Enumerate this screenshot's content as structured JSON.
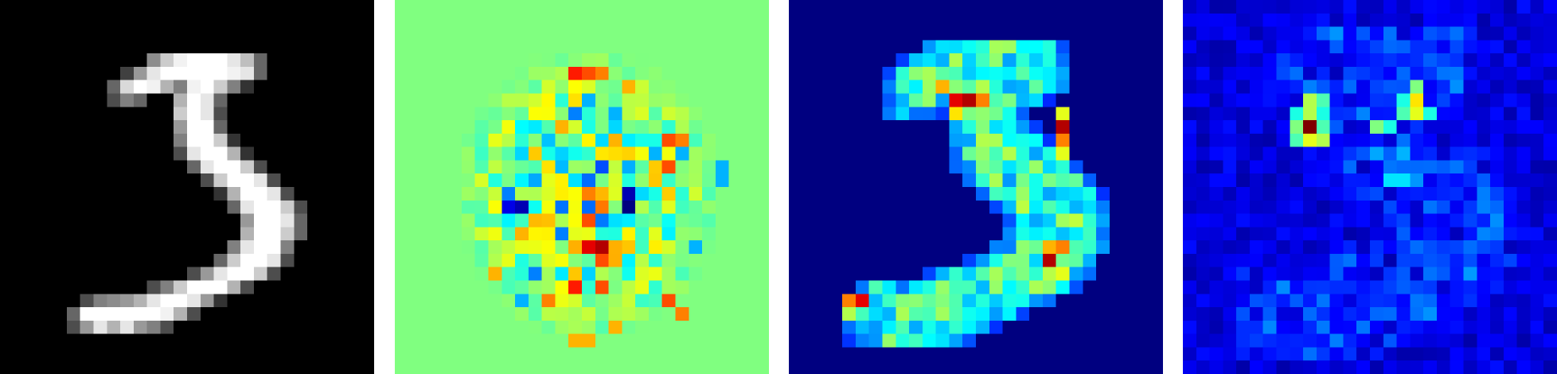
{
  "figure": {
    "description_visible_text": "",
    "grid_size": 28,
    "panels": [
      {
        "id": "input-digit",
        "colormap": "gray",
        "digit_shape": "3"
      },
      {
        "id": "attribution-map-diverging",
        "colormap": "jet",
        "background_level": 0.5
      },
      {
        "id": "attribution-map-input-masked",
        "colormap": "jet",
        "background_level": 0.0
      },
      {
        "id": "attribution-map-sparse",
        "colormap": "jet",
        "background_level": 0.08
      }
    ]
  }
}
